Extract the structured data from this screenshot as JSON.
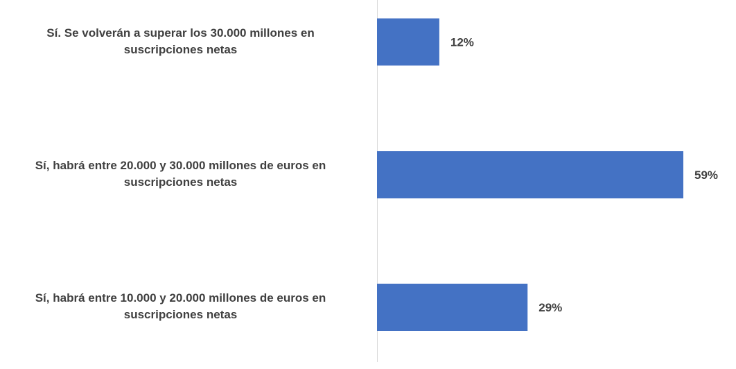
{
  "chart_data": {
    "type": "bar",
    "orientation": "horizontal",
    "categories": [
      [
        "Sí. Se volverán a superar los 30.000 millones en",
        "suscripciones netas"
      ],
      [
        "Sí, habrá entre 20.000 y 30.000 millones de euros en",
        "suscripciones netas"
      ],
      [
        "Sí, habrá entre 10.000 y 20.000 millones de euros en",
        "suscripciones netas"
      ]
    ],
    "values": [
      12,
      59,
      29
    ],
    "value_labels": [
      "12%",
      "59%",
      "29%"
    ],
    "title": "",
    "xlabel": "",
    "ylabel": "",
    "xlim": [
      0,
      100
    ],
    "grid": false,
    "legend": "none",
    "colors": {
      "bar": "#4472C4",
      "axis": "#D9D9D9",
      "text": "#404040"
    }
  }
}
